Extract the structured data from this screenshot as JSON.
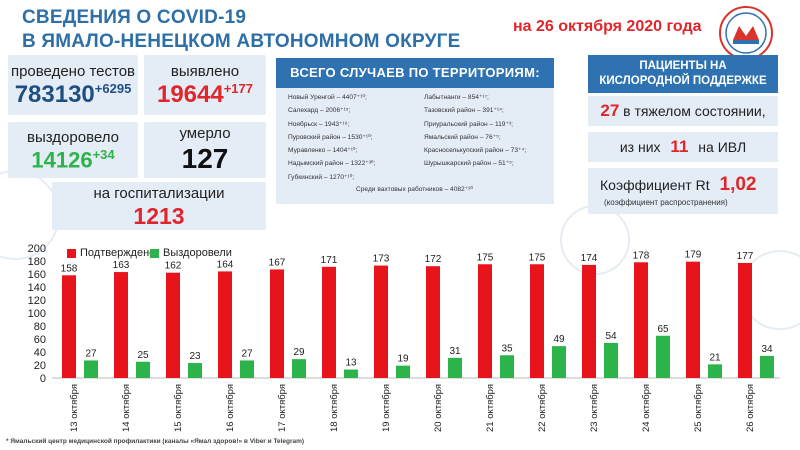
{
  "header": {
    "title_line1": "СВЕДЕНИЯ О COVID-19",
    "title_line2": "В ЯМАЛО-НЕНЕЦКОМ АВТОНОМНОМ ОКРУГЕ",
    "date": "на 26 октября 2020 года"
  },
  "stats": {
    "tests_label": "проведено тестов",
    "tests_value": "783130",
    "tests_delta": "+6295",
    "detected_label": "выявлено",
    "detected_value": "19644",
    "detected_delta": "+177",
    "recovered_label": "выздоровело",
    "recovered_value": "14126",
    "recovered_delta": "+34",
    "died_label": "умерло",
    "died_value": "127",
    "hosp_label": "на госпитализации",
    "hosp_value": "1213"
  },
  "territories": {
    "title": "ВСЕГО СЛУЧАЕВ ПО ТЕРРИТОРИЯМ:",
    "left": [
      "Новый Уренгой – 4407⁺¹⁰;",
      "Салехард – 2006⁺¹⁵;",
      "Ноябрьск – 1943⁺¹⁶;",
      "Пуровский район – 1530⁺¹⁰;",
      "Муравленко – 1404⁺¹⁰;",
      "Надымский район – 1322⁺³⁰;",
      "Губкинский – 1270⁺¹⁰;"
    ],
    "right": [
      "Лабытнанги – 854⁺¹⁷;",
      "Тазовский район – 391⁺¹⁴;",
      "Приуральский район – 119⁺³;",
      "Ямальский район – 76⁺⁵;",
      "Красноселькупский район – 73⁺⁴;",
      "Шурышкарский район – 51⁺⁵;"
    ],
    "footer": "Среди вахтовых     работников – 4082⁺²⁰"
  },
  "oxygen": {
    "title_line1": "ПАЦИЕНТЫ НА",
    "title_line2": "КИСЛОРОДНОЙ ПОДДЕРЖКЕ",
    "severe_num": "27",
    "severe_text": "в тяжелом состоянии,",
    "ivl_pre": "из них",
    "ivl_num": "11",
    "ivl_post": "на  ИВЛ",
    "rt_label": "Коэффициент Rt",
    "rt_value": "1,02",
    "rt_note": "(коэффициент распространения)"
  },
  "legend": {
    "confirmed": "Подтверждено",
    "recovered": "Выздоровели"
  },
  "footer_note": "* Ямальский центр медицинской профилактики (каналы «Ямал здоров!» в Viber и Telegram)",
  "colors": {
    "confirmed": "#e8141b",
    "recovered": "#2cb34a",
    "accent_blue": "#2f72b1",
    "panel": "#e4ecf6",
    "highlight_red": "#e0262b",
    "highlight_green": "#2cb34a"
  },
  "chart_data": {
    "type": "bar",
    "categories": [
      "13 октября",
      "14 октября",
      "15 октября",
      "16 октября",
      "17 октября",
      "18 октября",
      "19 октября",
      "20 октября",
      "21 октября",
      "22 октября",
      "23 октября",
      "24 октября",
      "25 октября",
      "26 октября"
    ],
    "series": [
      {
        "name": "Подтверждено",
        "values": [
          158,
          163,
          162,
          164,
          167,
          171,
          173,
          172,
          175,
          175,
          174,
          178,
          179,
          177
        ]
      },
      {
        "name": "Выздоровели",
        "values": [
          27,
          25,
          23,
          27,
          29,
          13,
          19,
          31,
          35,
          49,
          54,
          65,
          21,
          34
        ]
      }
    ],
    "yticks": [
      0,
      20,
      40,
      60,
      80,
      100,
      120,
      140,
      160,
      180,
      200
    ],
    "ylim": [
      0,
      200
    ],
    "legend_position": "top"
  }
}
